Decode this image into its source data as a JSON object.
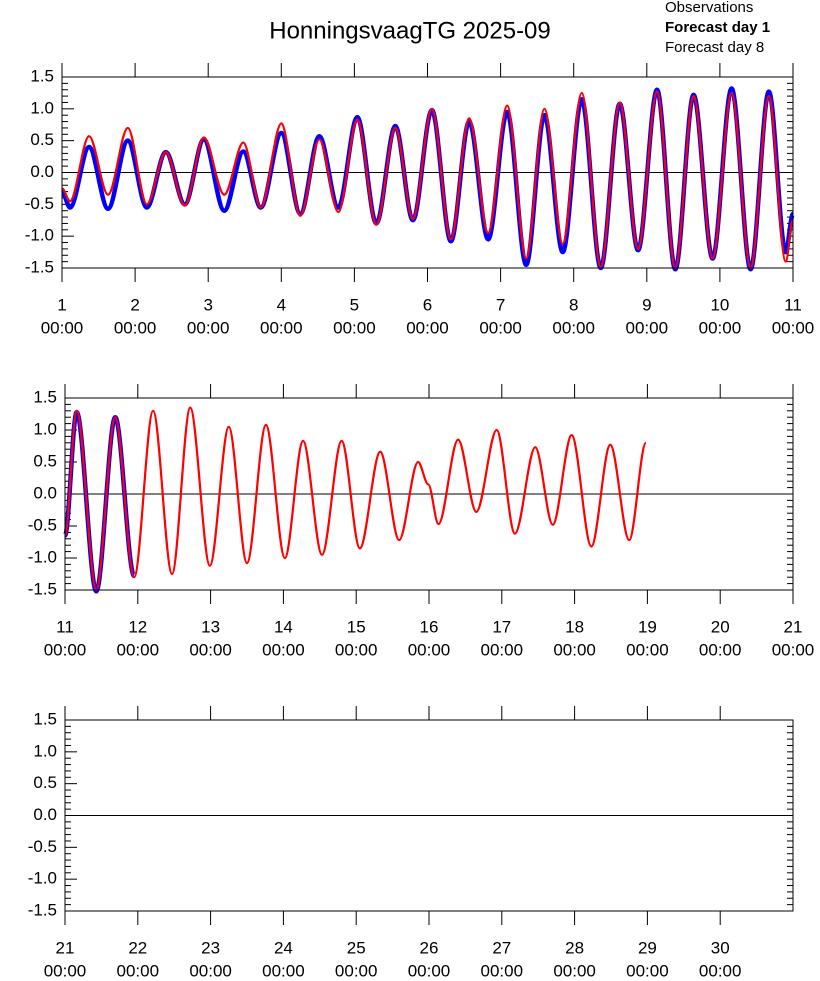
{
  "chart_data": [
    {
      "type": "line",
      "title": "HonningsvaagTG 2025-09",
      "legend": "upper right",
      "zero_line": true,
      "xlim": [
        1,
        11
      ],
      "xticks": [
        1,
        2,
        3,
        4,
        5,
        6,
        7,
        8,
        9,
        10,
        11
      ],
      "xtick_time": "00:00",
      "ylim": [
        -1.5,
        1.5
      ],
      "yticks": [
        -1.5,
        {
          "value": -1,
          "label": "-1.0"
        },
        -0.5,
        {
          "value": 0,
          "label": "0.0"
        },
        0.5,
        {
          "value": 1,
          "label": "1.0"
        },
        1.5
      ],
      "series": [
        {
          "name": "Observations",
          "color": "#000000",
          "x": [],
          "values": []
        },
        {
          "name": "Forecast day 1",
          "color": "#0000ff",
          "x": [
            1.0,
            1.11,
            1.37,
            1.63,
            1.9,
            2.16,
            2.42,
            2.68,
            2.94,
            3.22,
            3.48,
            3.72,
            4.0,
            4.26,
            4.52,
            4.78,
            5.04,
            5.3,
            5.56,
            5.8,
            6.06,
            6.32,
            6.57,
            6.83,
            7.09,
            7.35,
            7.6,
            7.85,
            8.11,
            8.37,
            8.63,
            8.88,
            9.14,
            9.39,
            9.64,
            9.9,
            10.16,
            10.42,
            10.67,
            10.9,
            11.0
          ],
          "values": [
            -0.3,
            -0.55,
            0.4,
            -0.57,
            0.5,
            -0.55,
            0.32,
            -0.5,
            0.52,
            -0.6,
            0.33,
            -0.55,
            0.62,
            -0.65,
            0.57,
            -0.55,
            0.87,
            -0.8,
            0.73,
            -0.75,
            0.98,
            -1.08,
            0.8,
            -1.05,
            0.95,
            -1.45,
            0.9,
            -1.25,
            1.15,
            -1.5,
            1.08,
            -1.22,
            1.3,
            -1.52,
            1.22,
            -1.35,
            1.32,
            -1.52,
            1.27,
            -1.25,
            -0.65
          ]
        },
        {
          "name": "Forecast day 8",
          "color": "#ff0000",
          "x": [
            1.0,
            1.11,
            1.37,
            1.63,
            1.9,
            2.16,
            2.42,
            2.68,
            2.94,
            3.22,
            3.48,
            3.72,
            4.0,
            4.26,
            4.52,
            4.78,
            5.04,
            5.3,
            5.56,
            5.8,
            6.06,
            6.32,
            6.57,
            6.83,
            7.09,
            7.35,
            7.6,
            7.85,
            8.11,
            8.37,
            8.63,
            8.88,
            9.14,
            9.39,
            9.64,
            9.9,
            10.16,
            10.42,
            10.67,
            10.9,
            11.0
          ],
          "values": [
            -0.25,
            -0.45,
            0.57,
            -0.35,
            0.7,
            -0.5,
            0.32,
            -0.52,
            0.55,
            -0.35,
            0.47,
            -0.55,
            0.77,
            -0.68,
            0.52,
            -0.62,
            0.83,
            -0.82,
            0.7,
            -0.73,
            1.0,
            -1.05,
            0.85,
            -0.95,
            1.05,
            -1.35,
            1.0,
            -1.12,
            1.25,
            -1.48,
            1.1,
            -1.2,
            1.27,
            -1.5,
            1.2,
            -1.35,
            1.25,
            -1.5,
            1.2,
            -1.4,
            -0.75
          ]
        }
      ]
    },
    {
      "type": "line",
      "zero_line": true,
      "xlim": [
        11,
        21
      ],
      "xticks": [
        11,
        12,
        13,
        14,
        15,
        16,
        17,
        18,
        19,
        20,
        21
      ],
      "xtick_time": "00:00",
      "ylim": [
        -1.5,
        1.5
      ],
      "yticks": [
        -1.5,
        {
          "value": -1,
          "label": "-1.0"
        },
        -0.5,
        {
          "value": 0,
          "label": "0.0"
        },
        0.5,
        {
          "value": 1,
          "label": "1.0"
        },
        1.5
      ],
      "series": [
        {
          "color": "#0000ff",
          "x": [
            11.0,
            11.16,
            11.43,
            11.69,
            11.95
          ],
          "values": [
            -0.65,
            1.28,
            -1.52,
            1.2,
            -1.28
          ]
        },
        {
          "color": "#ff0000",
          "x": [
            11.0,
            11.16,
            11.43,
            11.69,
            11.95,
            12.21,
            12.47,
            12.72,
            12.99,
            13.25,
            13.5,
            13.76,
            14.02,
            14.27,
            14.53,
            14.8,
            15.05,
            15.33,
            15.59,
            15.85,
            15.99,
            16.13,
            16.4,
            16.65,
            16.93,
            17.18,
            17.46,
            17.7,
            17.96,
            18.23,
            18.49,
            18.75,
            18.98
          ],
          "values": [
            -0.65,
            1.3,
            -1.5,
            1.2,
            -1.3,
            1.3,
            -1.25,
            1.35,
            -1.12,
            1.05,
            -1.08,
            1.08,
            -1.0,
            0.83,
            -0.95,
            0.83,
            -0.85,
            0.66,
            -0.72,
            0.5,
            0.15,
            -0.47,
            0.85,
            -0.28,
            1.0,
            -0.62,
            0.73,
            -0.48,
            0.92,
            -0.82,
            0.77,
            -0.72,
            0.8
          ]
        }
      ]
    },
    {
      "type": "line",
      "zero_line": true,
      "xlim": [
        21,
        31
      ],
      "xticks": [
        21,
        22,
        23,
        24,
        25,
        26,
        27,
        28,
        29,
        30
      ],
      "xtick_time": "00:00",
      "ylim": [
        -1.5,
        1.5
      ],
      "yticks": [
        -1.5,
        {
          "value": -1,
          "label": "-1.0"
        },
        -0.5,
        {
          "value": 0,
          "label": "0.0"
        },
        0.5,
        {
          "value": 1,
          "label": "1.0"
        },
        1.5
      ],
      "series": []
    }
  ]
}
